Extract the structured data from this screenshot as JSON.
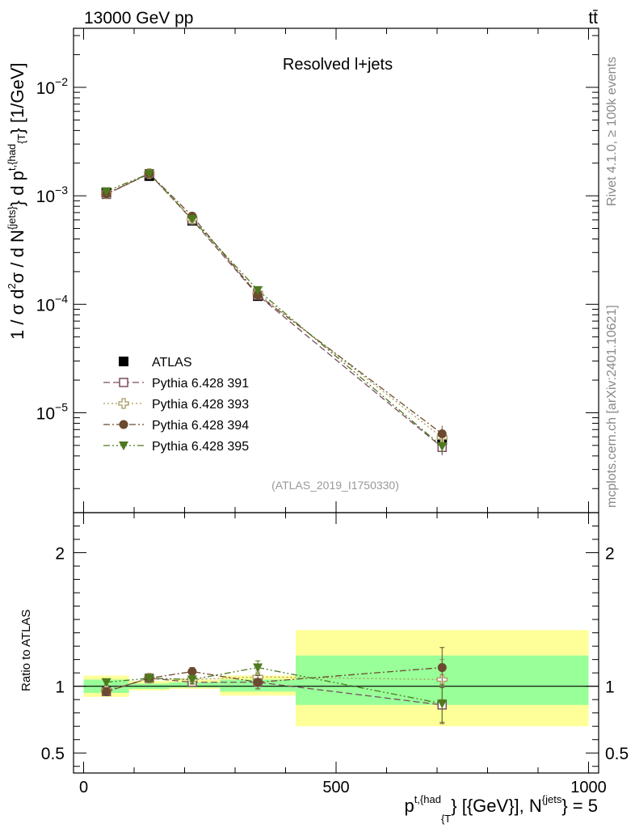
{
  "header": {
    "energy_label": "13000 GeV pp",
    "process_label": "tt̄"
  },
  "side_notes": {
    "rivet": "Rivet 4.1.0, ≥ 100k events",
    "mcplots": "mcplots.cern.ch [arXiv:2401.10621]"
  },
  "chart_data": [
    {
      "type": "line",
      "panel": "main",
      "title": "Resolved l+jets",
      "analysis_id": "(ATLAS_2019_I1750330)",
      "ylabel_parts": [
        "1 / σ d",
        "2",
        "σ / d N",
        "{jets}",
        "} d p",
        "t,{had",
        "{T",
        "} [1/GeV]"
      ],
      "yscale": "log",
      "xlim": [
        -20,
        1020
      ],
      "ylim": [
        1.2e-06,
        0.035
      ],
      "y_tick_labels": [
        {
          "base": "10",
          "exp": "−5",
          "value": 1e-05
        },
        {
          "base": "10",
          "exp": "−4",
          "value": 0.0001
        },
        {
          "base": "10",
          "exp": "−3",
          "value": 0.001
        },
        {
          "base": "10",
          "exp": "−2",
          "value": 0.01
        }
      ],
      "x": [
        45,
        130,
        215,
        345,
        710
      ],
      "bin_edges": [
        0,
        90,
        170,
        270,
        420,
        1000
      ],
      "series": [
        {
          "name": "ATLAS",
          "marker": "square-filled",
          "color": "#000000",
          "values": [
            0.00107,
            0.00152,
            0.00059,
            0.000119,
            5.6e-06
          ]
        },
        {
          "name": "Pythia 6.428 391",
          "marker": "square-open",
          "color": "#7a4e5f",
          "dash": "dash",
          "values": [
            0.00103,
            0.0016,
            0.0006,
            0.000121,
            4.8e-06
          ]
        },
        {
          "name": "Pythia 6.428 393",
          "marker": "cross-open",
          "color": "#a89a5a",
          "dash": "dot",
          "values": [
            0.00105,
            0.0016,
            0.00061,
            0.000126,
            5.9e-06
          ]
        },
        {
          "name": "Pythia 6.428 394",
          "marker": "circle-filled",
          "color": "#6b4a2f",
          "dash": "dashdot",
          "values": [
            0.00104,
            0.0016,
            0.00065,
            0.000122,
            6.4e-06
          ]
        },
        {
          "name": "Pythia 6.428 395",
          "marker": "triangle-down-filled",
          "color": "#4e7a1f",
          "dash": "dashdotdot",
          "values": [
            0.0011,
            0.0016,
            0.00061,
            0.000135,
            4.9e-06
          ]
        }
      ]
    },
    {
      "type": "line",
      "panel": "ratio",
      "ylabel": "Ratio to ATLAS",
      "xlabel_parts": [
        "p",
        "t,{had",
        "{T",
        "} [{GeV}], N",
        "{jets",
        "} = 5"
      ],
      "xlim": [
        -20,
        1020
      ],
      "ylim": [
        0.35,
        2.3
      ],
      "x_ticks": [
        0,
        500,
        1000
      ],
      "y_ticks": [
        0.5,
        1,
        2
      ],
      "bands": [
        {
          "x0": 0,
          "x1": 90,
          "yellow": [
            0.92,
            1.08
          ],
          "green": [
            0.95,
            1.05
          ]
        },
        {
          "x0": 90,
          "x1": 170,
          "yellow": [
            0.97,
            1.04
          ],
          "green": [
            0.98,
            1.02
          ]
        },
        {
          "x0": 170,
          "x1": 270,
          "yellow": [
            0.98,
            1.05
          ],
          "green": [
            0.99,
            1.03
          ]
        },
        {
          "x0": 270,
          "x1": 420,
          "yellow": [
            0.93,
            1.08
          ],
          "green": [
            0.96,
            1.05
          ]
        },
        {
          "x0": 420,
          "x1": 1000,
          "yellow": [
            0.7,
            1.42
          ],
          "green": [
            0.86,
            1.23
          ]
        }
      ],
      "x": [
        45,
        130,
        215,
        345,
        710
      ],
      "series": [
        {
          "name": "Pythia 6.428 391",
          "values": [
            0.96,
            1.06,
            1.03,
            1.03,
            0.86
          ],
          "err": [
            0.02,
            0.02,
            0.03,
            0.05,
            0.14
          ]
        },
        {
          "name": "Pythia 6.428 393",
          "values": [
            0.97,
            1.06,
            1.05,
            1.07,
            1.05
          ],
          "err": [
            0.02,
            0.02,
            0.03,
            0.05,
            0.15
          ]
        },
        {
          "name": "Pythia 6.428 394",
          "values": [
            0.96,
            1.06,
            1.11,
            1.03,
            1.14
          ],
          "err": [
            0.02,
            0.02,
            0.03,
            0.05,
            0.15
          ]
        },
        {
          "name": "Pythia 6.428 395",
          "values": [
            1.03,
            1.06,
            1.05,
            1.14,
            0.87
          ],
          "err": [
            0.02,
            0.02,
            0.03,
            0.05,
            0.14
          ]
        }
      ]
    }
  ]
}
